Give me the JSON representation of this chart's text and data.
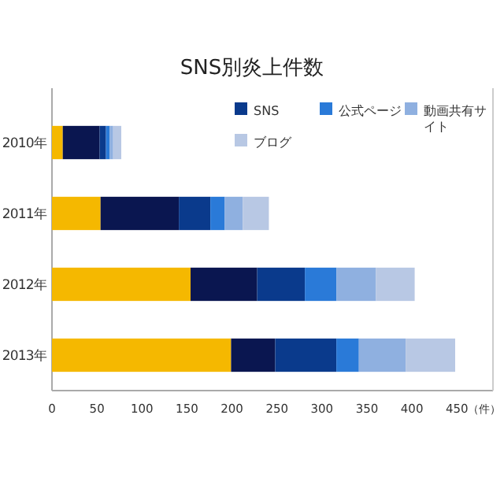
{
  "chart_data": {
    "type": "bar",
    "orientation": "horizontal",
    "stacked": true,
    "title": "SNS別炎上件数",
    "xlabel": "（件）",
    "categories": [
      "2010年",
      "2011年",
      "2012年",
      "2013年"
    ],
    "series": [
      {
        "color": "#f5b800",
        "values": [
          12,
          54,
          154,
          199
        ]
      },
      {
        "color": "#0a1650",
        "values": [
          41,
          87,
          74,
          49
        ]
      },
      {
        "name": "SNS",
        "color": "#0a3a8c",
        "values": [
          7,
          35,
          53,
          68
        ]
      },
      {
        "name": "公式ページ",
        "color": "#2a7ad8",
        "values": [
          4,
          16,
          35,
          25
        ]
      },
      {
        "name": "動画共有サイト",
        "color": "#8fb0e0",
        "values": [
          4,
          20,
          44,
          52
        ]
      },
      {
        "name": "ブログ",
        "color": "#b8c8e4",
        "values": [
          9,
          29,
          43,
          55
        ]
      }
    ],
    "xlim": [
      0,
      490
    ],
    "xticks": [
      0,
      50,
      100,
      150,
      200,
      250,
      300,
      350,
      400,
      450
    ],
    "grid": false,
    "legend": "top right"
  }
}
